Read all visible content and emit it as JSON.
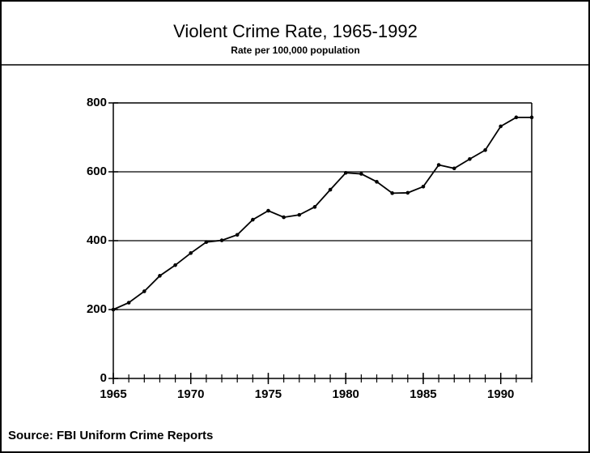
{
  "chart_data": {
    "type": "line",
    "title": "Violent Crime Rate, 1965-1992",
    "subtitle": "Rate per 100,000 population",
    "source": "Source: FBI Uniform Crime Reports",
    "x": [
      1965,
      1966,
      1967,
      1968,
      1969,
      1970,
      1971,
      1972,
      1973,
      1974,
      1975,
      1976,
      1977,
      1978,
      1979,
      1980,
      1981,
      1982,
      1983,
      1984,
      1985,
      1986,
      1987,
      1988,
      1989,
      1990,
      1991,
      1992
    ],
    "series": [
      {
        "name": "Violent crime rate",
        "color": "#000000",
        "values": [
          200,
          220,
          253,
          298,
          329,
          364,
          396,
          401,
          417,
          461,
          487,
          468,
          475,
          498,
          548,
          597,
          594,
          571,
          538,
          539,
          557,
          620,
          610,
          637,
          663,
          732,
          758,
          758
        ]
      }
    ],
    "xlim": [
      1965,
      1992
    ],
    "xticks": [
      1965,
      1970,
      1975,
      1980,
      1985,
      1990
    ],
    "ylim": [
      0,
      800
    ],
    "yticks": [
      0,
      200,
      400,
      600,
      800
    ],
    "grid": true
  }
}
